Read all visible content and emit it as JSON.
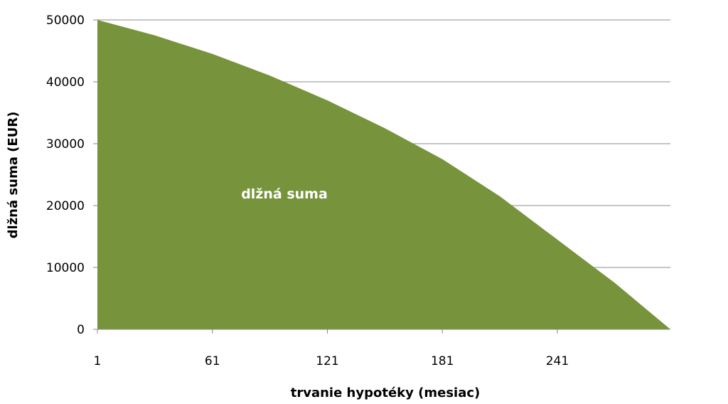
{
  "chart_data": {
    "type": "area",
    "title": "",
    "xlabel": "trvanie hypotéky (mesiac)",
    "ylabel": "dlžná suma (EUR)",
    "x_ticks": [
      "1",
      "61",
      "121",
      "181",
      "241"
    ],
    "y_ticks": [
      "0",
      "10000",
      "20000",
      "30000",
      "40000",
      "50000"
    ],
    "xlim": [
      1,
      300
    ],
    "ylim": [
      0,
      50000
    ],
    "grid": "horizontal",
    "area_label": "dlžná suma",
    "fill_color": "#77933c",
    "series": [
      {
        "name": "dlžná suma",
        "x": [
          1,
          31,
          61,
          91,
          121,
          151,
          181,
          211,
          241,
          271,
          300
        ],
        "values": [
          50000,
          47500,
          44500,
          41000,
          37000,
          32500,
          27500,
          21500,
          14500,
          7500,
          0
        ]
      }
    ]
  }
}
